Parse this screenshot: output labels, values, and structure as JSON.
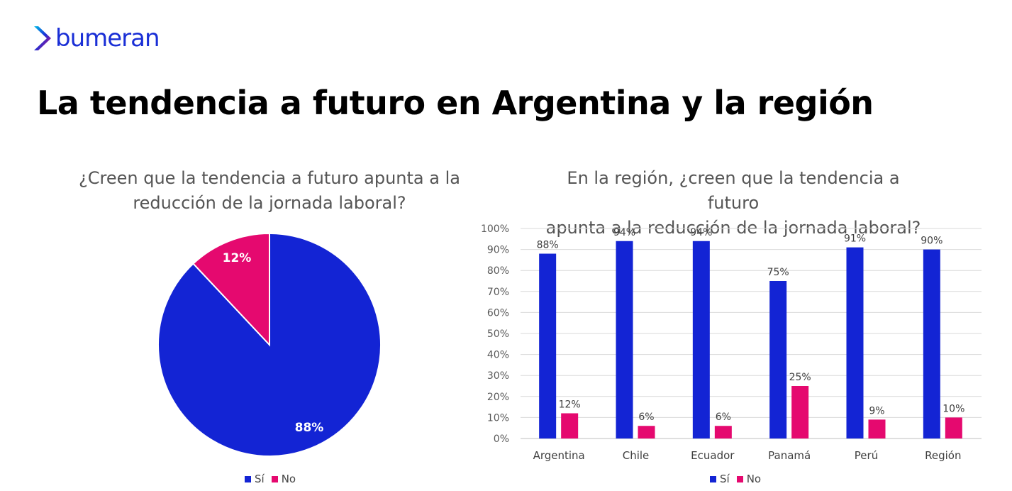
{
  "brand": {
    "name": "bumeran",
    "primary": "#1a2fd6",
    "accent": "#e5096f"
  },
  "page": {
    "title": "La tendencia a futuro en Argentina y la región"
  },
  "chart_data": [
    {
      "type": "pie",
      "title_line1": "¿Creen que la tendencia a futuro apunta a la",
      "title_line2": "reducción de la jornada laboral?",
      "labels": [
        "Sí",
        "No"
      ],
      "values": [
        88,
        12
      ],
      "value_labels": [
        "88%",
        "12%"
      ],
      "colors": [
        "#1324d4",
        "#e5096f"
      ],
      "legend": {
        "position": "bottom",
        "entries": [
          "Sí",
          "No"
        ]
      }
    },
    {
      "type": "bar",
      "title_line1": "En la región, ¿creen que la tendencia a futuro",
      "title_line2": "apunta a la reducción de la jornada laboral?",
      "categories": [
        "Argentina",
        "Chile",
        "Ecuador",
        "Panamá",
        "Perú",
        "Región"
      ],
      "series": [
        {
          "name": "Sí",
          "color": "#1324d4",
          "values": [
            88,
            94,
            94,
            75,
            91,
            90
          ],
          "labels": [
            "88%",
            "94%",
            "94%",
            "75%",
            "91%",
            "90%"
          ]
        },
        {
          "name": "No",
          "color": "#e5096f",
          "values": [
            12,
            6,
            6,
            25,
            9,
            10
          ],
          "labels": [
            "12%",
            "6%",
            "6%",
            "25%",
            "9%",
            "10%"
          ]
        }
      ],
      "ylim": [
        0,
        100
      ],
      "yticks": [
        "0%",
        "10%",
        "20%",
        "30%",
        "40%",
        "50%",
        "60%",
        "70%",
        "80%",
        "90%",
        "100%"
      ],
      "grid": true,
      "legend": {
        "position": "bottom",
        "entries": [
          "Sí",
          "No"
        ]
      }
    }
  ]
}
